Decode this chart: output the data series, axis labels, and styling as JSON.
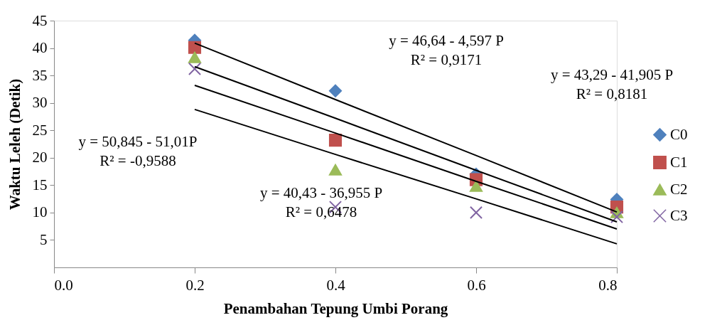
{
  "chart_data": {
    "type": "scatter",
    "xlabel": "Penambahan Tepung Umbi Porang",
    "ylabel": "Waktu  Leleh (Detik)",
    "x": [
      0.2,
      0.4,
      0.6,
      0.8
    ],
    "xlim": [
      0,
      0.8
    ],
    "xticks": [
      {
        "value": 0,
        "label": "0.0"
      },
      {
        "value": 0.2,
        "label": "0.2"
      },
      {
        "value": 0.4,
        "label": "0.4"
      },
      {
        "value": 0.6,
        "label": "0.6"
      },
      {
        "value": 0.8,
        "label": "0.8"
      }
    ],
    "ylim": [
      0,
      45
    ],
    "yticks": [
      5,
      10,
      15,
      20,
      25,
      30,
      35,
      40,
      45
    ],
    "grid": false,
    "legend": "right",
    "series": [
      {
        "name": "C0",
        "color": "#4f81bd",
        "marker": "diamond",
        "values": [
          41.4,
          32.2,
          17,
          12.4
        ]
      },
      {
        "name": "C1",
        "color": "#c0504d",
        "marker": "square",
        "values": [
          40.1,
          23.2,
          16,
          11
        ]
      },
      {
        "name": "C2",
        "color": "#9bbb59",
        "marker": "triangle",
        "values": [
          38.3,
          17.8,
          14.8,
          10
        ]
      },
      {
        "name": "C3",
        "color": "#8064a2",
        "marker": "cross",
        "values": [
          36.2,
          11,
          10,
          9.2
        ]
      },
      {
        "type": "line",
        "color": "#000000",
        "values": [
          40.9,
          30.6,
          20.4,
          10.1
        ]
      },
      {
        "type": "line",
        "color": "#000000",
        "values": [
          36.6,
          27.2,
          17.7,
          8.3
        ]
      },
      {
        "type": "line",
        "color": "#000000",
        "values": [
          33.2,
          24.5,
          15.7,
          7.0
        ]
      },
      {
        "type": "line",
        "color": "#000000",
        "values": [
          28.8,
          20.6,
          12.5,
          4.3
        ]
      }
    ],
    "annotations": [
      "y = 50,845 - 51,01P\nR² = -0,9588",
      "y = 40,43 - 36,955 P\nR² = 0,6478",
      "y = 46,64 - 4,597 P\nR² = 0,9171",
      "y = 43,29 - 41,905 P\nR² = 0,8181"
    ]
  }
}
